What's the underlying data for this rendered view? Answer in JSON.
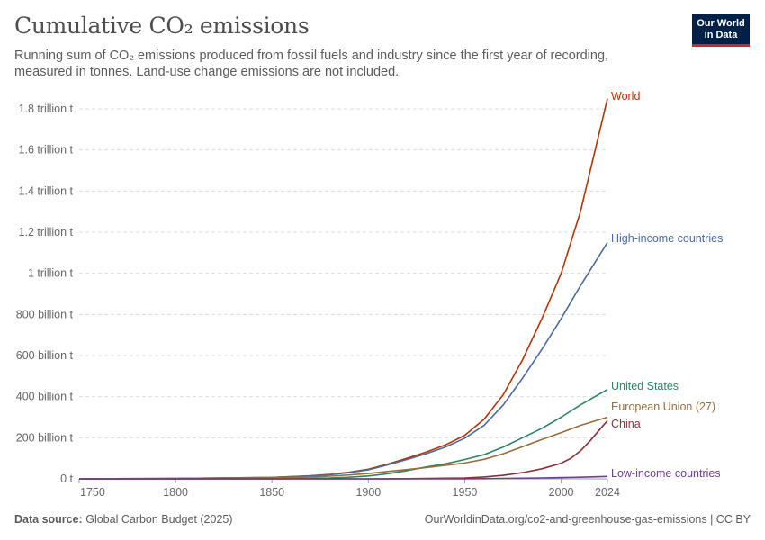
{
  "header": {
    "title": "Cumulative CO₂ emissions",
    "subtitle": "Running sum of CO₂ emissions produced from fossil fuels and industry since the first year of recording, measured in tonnes. Land-use change emissions are not included."
  },
  "logo": {
    "line1": "Our World",
    "line2": "in Data",
    "bg_color": "#002147",
    "accent_color": "#ce261e"
  },
  "footer": {
    "source_label": "Data source:",
    "source_value": "Global Carbon Budget (2025)",
    "link": "OurWorldinData.org/co2-and-greenhouse-gas-emissions | CC BY"
  },
  "chart_data": {
    "type": "line",
    "title": "Cumulative CO₂ emissions",
    "unit": "tonnes",
    "xlim": [
      1750,
      2024
    ],
    "ylim": [
      0,
      1800000000000
    ],
    "x_ticks": [
      {
        "value": 1750,
        "label": "1750"
      },
      {
        "value": 1800,
        "label": "1800"
      },
      {
        "value": 1850,
        "label": "1850"
      },
      {
        "value": 1900,
        "label": "1900"
      },
      {
        "value": 1950,
        "label": "1950"
      },
      {
        "value": 2000,
        "label": "2000"
      },
      {
        "value": 2024,
        "label": "2024"
      }
    ],
    "y_ticks": [
      {
        "value": 0,
        "label": "0 t"
      },
      {
        "value": 200000000000,
        "label": "200 billion t"
      },
      {
        "value": 400000000000,
        "label": "400 billion t"
      },
      {
        "value": 600000000000,
        "label": "600 billion t"
      },
      {
        "value": 800000000000,
        "label": "800 billion t"
      },
      {
        "value": 1000000000000,
        "label": "1 trillion t"
      },
      {
        "value": 1200000000000,
        "label": "1.2 trillion t"
      },
      {
        "value": 1400000000000,
        "label": "1.4 trillion t"
      },
      {
        "value": 1600000000000,
        "label": "1.6 trillion t"
      },
      {
        "value": 1800000000000,
        "label": "1.8 trillion t"
      }
    ],
    "grid": true,
    "legend": "end-of-line labels",
    "series": [
      {
        "name": "World",
        "color": "#b13507",
        "x": [
          1750,
          1800,
          1850,
          1870,
          1880,
          1890,
          1900,
          1910,
          1920,
          1930,
          1940,
          1950,
          1960,
          1970,
          1980,
          1990,
          2000,
          2010,
          2024
        ],
        "y": [
          0,
          2000000000,
          7000000000,
          15000000000,
          22000000000,
          32000000000,
          47000000000,
          72000000000,
          100000000000,
          130000000000,
          165000000000,
          212000000000,
          290000000000,
          410000000000,
          580000000000,
          780000000000,
          1000000000000,
          1300000000000,
          1850000000000
        ]
      },
      {
        "name": "High-income countries",
        "color": "#4c6a9c",
        "x": [
          1750,
          1800,
          1850,
          1870,
          1880,
          1890,
          1900,
          1910,
          1920,
          1930,
          1940,
          1950,
          1960,
          1970,
          1980,
          1990,
          2000,
          2010,
          2024
        ],
        "y": [
          0,
          2000000000,
          7000000000,
          14000000000,
          20000000000,
          30000000000,
          44000000000,
          68000000000,
          94000000000,
          122000000000,
          155000000000,
          198000000000,
          260000000000,
          360000000000,
          490000000000,
          630000000000,
          780000000000,
          940000000000,
          1150000000000
        ]
      },
      {
        "name": "United States",
        "color": "#2c8465",
        "x": [
          1750,
          1800,
          1850,
          1870,
          1880,
          1890,
          1900,
          1910,
          1920,
          1930,
          1940,
          1950,
          1960,
          1970,
          1980,
          1990,
          2000,
          2010,
          2024
        ],
        "y": [
          0,
          0,
          500000000,
          2000000000,
          4000000000,
          8000000000,
          14000000000,
          25000000000,
          40000000000,
          58000000000,
          73000000000,
          94000000000,
          118000000000,
          155000000000,
          200000000000,
          246000000000,
          300000000000,
          360000000000,
          435000000000
        ]
      },
      {
        "name": "European Union (27)",
        "color": "#996d39",
        "x": [
          1750,
          1800,
          1850,
          1870,
          1880,
          1890,
          1900,
          1910,
          1920,
          1930,
          1940,
          1950,
          1960,
          1970,
          1980,
          1990,
          2000,
          2010,
          2024
        ],
        "y": [
          0,
          1000000000,
          5000000000,
          9000000000,
          13000000000,
          19000000000,
          26000000000,
          36000000000,
          45000000000,
          55000000000,
          66000000000,
          77000000000,
          95000000000,
          122000000000,
          157000000000,
          192000000000,
          225000000000,
          260000000000,
          300000000000
        ]
      },
      {
        "name": "China",
        "color": "#883039",
        "x": [
          1750,
          1800,
          1850,
          1900,
          1910,
          1920,
          1930,
          1940,
          1950,
          1960,
          1970,
          1980,
          1990,
          2000,
          2005,
          2010,
          2015,
          2020,
          2024
        ],
        "y": [
          0,
          0,
          0,
          0,
          500000000,
          1000000000,
          2000000000,
          3000000000,
          4000000000,
          9000000000,
          17000000000,
          30000000000,
          49000000000,
          76000000000,
          100000000000,
          136000000000,
          185000000000,
          240000000000,
          283000000000
        ]
      },
      {
        "name": "Low-income countries",
        "color": "#6d3e91",
        "x": [
          1750,
          1800,
          1850,
          1900,
          1950,
          1960,
          1970,
          1980,
          1990,
          2000,
          2010,
          2024
        ],
        "y": [
          0,
          0,
          0,
          0,
          500000000,
          1000000000,
          2000000000,
          3000000000,
          4500000000,
          6000000000,
          8000000000,
          12000000000
        ]
      }
    ]
  }
}
